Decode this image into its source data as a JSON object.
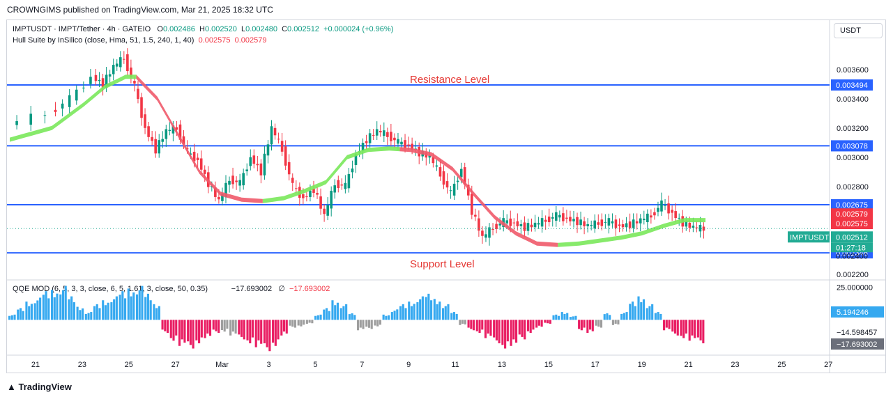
{
  "header": {
    "published": "CROWNGIMS published on TradingView.com, Mar 21, 2025 18:32 UTC"
  },
  "legend": {
    "symbol_line": "IMPTUSDT · IMPT/Tether · 4h · GATEIO",
    "o_label": "O",
    "o": "0.002486",
    "h_label": "H",
    "h": "0.002520",
    "l_label": "L",
    "l": "0.002480",
    "c_label": "C",
    "c": "0.002512",
    "change": "+0.000024 (+0.96%)",
    "hull_label": "Hull Suite by InSilico (close, Hma, 51, 1.5, 240, 1, 40)",
    "hull_v1": "0.002575",
    "hull_v2": "0.002579",
    "qqe_label": "QQE MOD (6, 5, 3, 3, close, 6, 5, 1.61, 3, close, 50, 0.35)",
    "qqe_v1": "−17.693002",
    "qqe_sym": "∅",
    "qqe_v2": "−17.693002"
  },
  "currency": "USDT",
  "brand": "TradingView",
  "annotations": {
    "resistance": "Resistance Level",
    "support": "Support Level"
  },
  "colors": {
    "up": "#089981",
    "down": "#f23645",
    "hline": "#2962ff",
    "hull_up": "#7ae85b",
    "hull_down": "#ef5a6a",
    "qqe_blue": "#36a9f0",
    "qqe_pink": "#e91e63",
    "qqe_gray": "#9e9e9e"
  },
  "chart_data": {
    "type": "candlestick",
    "timeframe": "4h",
    "ylim": [
      0.00218,
      0.00378
    ],
    "y_ticks": [
      "0.003600",
      "0.003400",
      "0.003200",
      "0.003000",
      "0.002800",
      "0.002400",
      "0.002200"
    ],
    "x_ticks": [
      "21",
      "23",
      "25",
      "27",
      "Mar",
      "3",
      "5",
      "7",
      "9",
      "11",
      "13",
      "15",
      "17",
      "19",
      "21",
      "23",
      "25",
      "27"
    ],
    "horizontal_levels": [
      {
        "value": 0.003494,
        "label": "0.003494"
      },
      {
        "value": 0.003078,
        "label": "0.003078"
      },
      {
        "value": 0.002675,
        "label": "0.002675"
      },
      {
        "value": 0.002346,
        "label": "0.002346"
      }
    ],
    "price_tags": [
      {
        "value": 0.002579,
        "label": "0.002579",
        "color": "#f23645"
      },
      {
        "value": 0.002575,
        "label": "0.002575",
        "color": "#f23645"
      },
      {
        "value": 0.002512,
        "label": "0.002512",
        "color": "#22ab94"
      }
    ],
    "last_price": {
      "symbol": "IMPTUSDT",
      "value": "0.002512",
      "countdown": "01:27:18",
      "partial_label": "0.002400"
    },
    "price_path": [
      [
        0,
        0.00322
      ],
      [
        4,
        0.0033
      ],
      [
        6,
        0.0034
      ],
      [
        8,
        0.00355
      ],
      [
        9,
        0.0035
      ],
      [
        10,
        0.00362
      ],
      [
        11,
        0.00368
      ],
      [
        12,
        0.00348
      ],
      [
        13,
        0.0032
      ],
      [
        14,
        0.00305
      ],
      [
        15,
        0.00318
      ],
      [
        16,
        0.0032
      ],
      [
        17,
        0.00303
      ],
      [
        18,
        0.00298
      ],
      [
        19,
        0.00282
      ],
      [
        20,
        0.0027
      ],
      [
        21,
        0.00285
      ],
      [
        22,
        0.00282
      ],
      [
        23,
        0.003
      ],
      [
        24,
        0.0029
      ],
      [
        25,
        0.0032
      ],
      [
        26,
        0.00305
      ],
      [
        27,
        0.0028
      ],
      [
        28,
        0.00272
      ],
      [
        29,
        0.00278
      ],
      [
        30,
        0.0026
      ],
      [
        31,
        0.00282
      ],
      [
        32,
        0.0028
      ],
      [
        33,
        0.00302
      ],
      [
        34,
        0.00312
      ],
      [
        35,
        0.00318
      ],
      [
        36,
        0.00315
      ],
      [
        37,
        0.0031
      ],
      [
        38,
        0.00308
      ],
      [
        39,
        0.00303
      ],
      [
        40,
        0.003
      ],
      [
        41,
        0.00288
      ],
      [
        42,
        0.00275
      ],
      [
        43,
        0.00292
      ],
      [
        44,
        0.00263
      ],
      [
        45,
        0.00245
      ],
      [
        46,
        0.00252
      ],
      [
        47,
        0.00256
      ],
      [
        48,
        0.00255
      ],
      [
        49,
        0.00252
      ],
      [
        50,
        0.00254
      ],
      [
        51,
        0.00257
      ],
      [
        52,
        0.0026
      ],
      [
        53,
        0.00258
      ],
      [
        54,
        0.00256
      ],
      [
        55,
        0.00253
      ],
      [
        56,
        0.00255
      ],
      [
        57,
        0.00256
      ],
      [
        58,
        0.00253
      ],
      [
        59,
        0.00254
      ],
      [
        60,
        0.00257
      ],
      [
        61,
        0.0026
      ],
      [
        62,
        0.00268
      ],
      [
        63,
        0.00262
      ],
      [
        64,
        0.00255
      ],
      [
        65,
        0.00252
      ],
      [
        66,
        0.00251
      ]
    ],
    "hull_path": [
      [
        0,
        0.00312
      ],
      [
        4,
        0.0032
      ],
      [
        7,
        0.00336
      ],
      [
        9,
        0.00348
      ],
      [
        11,
        0.00355
      ],
      [
        12,
        0.00355
      ],
      [
        14,
        0.0034
      ],
      [
        16,
        0.00315
      ],
      [
        18,
        0.0029
      ],
      [
        20,
        0.00275
      ],
      [
        22,
        0.00271
      ],
      [
        24,
        0.0027
      ],
      [
        26,
        0.00272
      ],
      [
        28,
        0.00277
      ],
      [
        30,
        0.00283
      ],
      [
        32,
        0.003
      ],
      [
        34,
        0.00305
      ],
      [
        36,
        0.00306
      ],
      [
        38,
        0.00305
      ],
      [
        40,
        0.00302
      ],
      [
        42,
        0.00292
      ],
      [
        44,
        0.00275
      ],
      [
        46,
        0.00259
      ],
      [
        48,
        0.00248
      ],
      [
        50,
        0.00241
      ],
      [
        52,
        0.0024
      ],
      [
        54,
        0.00241
      ],
      [
        56,
        0.00243
      ],
      [
        58,
        0.00245
      ],
      [
        60,
        0.00248
      ],
      [
        62,
        0.00253
      ],
      [
        64,
        0.00257
      ],
      [
        66,
        0.00257
      ]
    ],
    "hull_segments": [
      {
        "from": 0,
        "to": 12,
        "trend": "up"
      },
      {
        "from": 12,
        "to": 24,
        "trend": "down"
      },
      {
        "from": 24,
        "to": 37,
        "trend": "up"
      },
      {
        "from": 37,
        "to": 52,
        "trend": "down"
      },
      {
        "from": 52,
        "to": 66,
        "trend": "up"
      }
    ],
    "qqe": {
      "ylim": [
        -26,
        29
      ],
      "y_ticks": [
        "25.000000"
      ],
      "tags": [
        "5.194246",
        "−14.598457",
        "−17.693002"
      ],
      "histogram": [
        [
          0,
          4
        ],
        [
          1,
          9
        ],
        [
          2,
          14
        ],
        [
          3,
          17
        ],
        [
          4,
          22
        ],
        [
          5,
          23
        ],
        [
          6,
          26
        ],
        [
          7,
          18
        ],
        [
          8,
          10
        ],
        [
          9,
          6
        ],
        [
          10,
          12
        ],
        [
          11,
          15
        ],
        [
          12,
          18
        ],
        [
          13,
          22
        ],
        [
          14,
          24
        ],
        [
          15,
          26
        ],
        [
          16,
          20
        ],
        [
          17,
          12
        ],
        [
          18,
          -10
        ],
        [
          19,
          -16
        ],
        [
          20,
          -20
        ],
        [
          21,
          -22
        ],
        [
          22,
          -18
        ],
        [
          23,
          -14
        ],
        [
          24,
          -10
        ],
        [
          25,
          -9
        ],
        [
          26,
          -12
        ],
        [
          27,
          -15
        ],
        [
          28,
          -18
        ],
        [
          29,
          -21
        ],
        [
          30,
          -24
        ],
        [
          31,
          -20
        ],
        [
          32,
          -12
        ],
        [
          33,
          -6
        ],
        [
          34,
          -5
        ],
        [
          35,
          -3
        ],
        [
          36,
          4
        ],
        [
          37,
          9
        ],
        [
          38,
          15
        ],
        [
          39,
          12
        ],
        [
          40,
          5
        ],
        [
          41,
          -8
        ],
        [
          42,
          -7
        ],
        [
          43,
          -5
        ],
        [
          44,
          4
        ],
        [
          45,
          8
        ],
        [
          46,
          12
        ],
        [
          47,
          14
        ],
        [
          48,
          18
        ],
        [
          49,
          20
        ],
        [
          50,
          16
        ],
        [
          51,
          12
        ],
        [
          52,
          6
        ],
        [
          53,
          -4
        ],
        [
          54,
          -8
        ],
        [
          55,
          -10
        ],
        [
          56,
          -14
        ],
        [
          57,
          -18
        ],
        [
          58,
          -22
        ],
        [
          59,
          -20
        ],
        [
          60,
          -15
        ],
        [
          61,
          -10
        ],
        [
          62,
          -6
        ],
        [
          63,
          -3
        ],
        [
          64,
          4
        ],
        [
          65,
          6
        ],
        [
          66,
          3
        ],
        [
          67,
          -8
        ],
        [
          68,
          -10
        ],
        [
          69,
          -6
        ],
        [
          70,
          5
        ],
        [
          71,
          -4
        ],
        [
          72,
          6
        ],
        [
          73,
          14
        ],
        [
          74,
          18
        ],
        [
          75,
          12
        ],
        [
          76,
          6
        ],
        [
          77,
          -8
        ],
        [
          78,
          -12
        ],
        [
          79,
          -14
        ],
        [
          80,
          -16
        ],
        [
          81,
          -18
        ]
      ],
      "gray_bars": [
        25,
        26,
        33,
        34,
        35,
        41,
        42,
        43,
        53,
        69,
        71
      ]
    }
  }
}
